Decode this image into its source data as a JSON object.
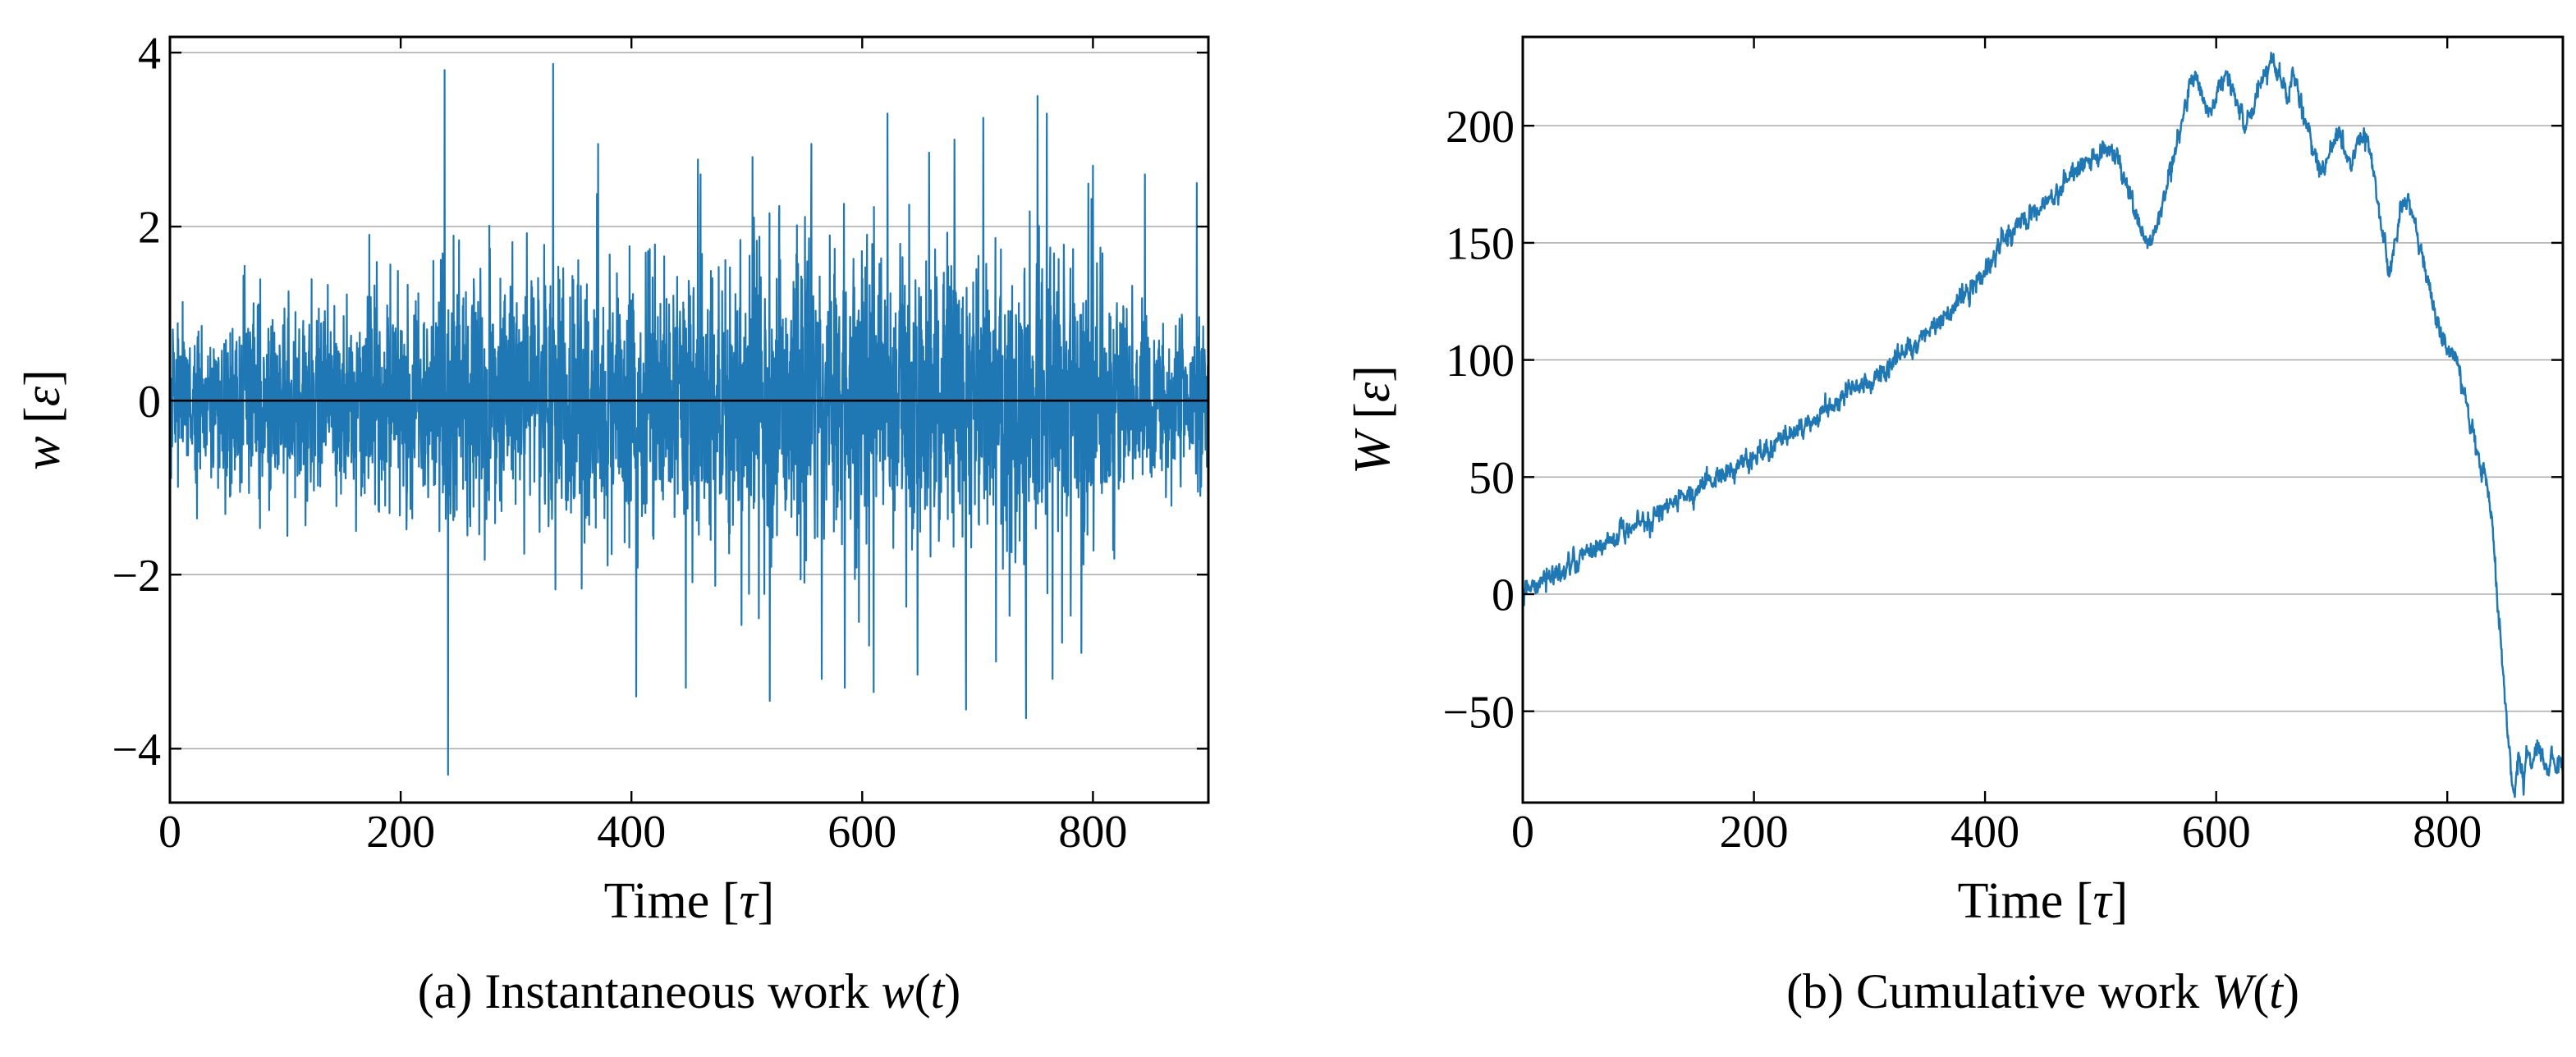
{
  "figure": {
    "style": {
      "background": "#ffffff",
      "line_color": "#1f77b4",
      "grid_color": "#b0b0b0",
      "axis_color": "#000000",
      "text_color": "#000000"
    }
  },
  "chart_data": [
    {
      "id": "panel-a",
      "type": "line",
      "title": "",
      "caption": "(a) Instantaneous work w(t)",
      "caption_segments": [
        [
          "(a) Instantaneous work ",
          false
        ],
        [
          "w",
          true
        ],
        [
          "(",
          false
        ],
        [
          "t",
          true
        ],
        [
          ")",
          false
        ]
      ],
      "xlabel": "Time [τ]",
      "xlabel_segments": [
        [
          "Time [",
          false
        ],
        [
          "τ",
          true
        ],
        [
          "]",
          false
        ]
      ],
      "ylabel": "w [ε]",
      "ylabel_segments": [
        [
          "w",
          true
        ],
        [
          " [",
          false
        ],
        [
          "ε",
          true
        ],
        [
          "]",
          false
        ]
      ],
      "xlim": [
        0,
        900
      ],
      "ylim": [
        -4.62,
        4.18
      ],
      "xticks": [
        0,
        200,
        400,
        600,
        800
      ],
      "yticks": [
        4,
        2,
        0,
        -2,
        -4
      ],
      "grid": "horizontal-only",
      "legend": "none",
      "zero_line": true,
      "line_width": 2.2,
      "series": {
        "name": "w(t)",
        "n_points": 3600,
        "seed": 42,
        "sigma_factor": 0.5,
        "envelope_t": [
          0,
          60,
          120,
          200,
          280,
          360,
          440,
          520,
          600,
          680,
          740,
          790,
          820,
          840,
          860,
          905
        ],
        "envelope_amp": [
          0.9,
          1.0,
          1.1,
          1.25,
          1.45,
          1.55,
          1.6,
          1.6,
          1.65,
          1.7,
          1.7,
          1.6,
          1.35,
          1.05,
          0.92,
          0.9
        ],
        "spikes": [
          [
            238,
            3.8
          ],
          [
            241,
            -4.3
          ],
          [
            332,
            3.87
          ],
          [
            371,
            2.95
          ],
          [
            404,
            -3.4
          ],
          [
            447,
            -3.3
          ],
          [
            460,
            2.6
          ],
          [
            505,
            2.8
          ],
          [
            520,
            -3.45
          ],
          [
            556,
            2.95
          ],
          [
            565,
            -3.2
          ],
          [
            585,
            -3.3
          ],
          [
            610,
            -3.35
          ],
          [
            622,
            3.3
          ],
          [
            648,
            -3.15
          ],
          [
            658,
            2.85
          ],
          [
            680,
            3.0
          ],
          [
            690,
            -3.55
          ],
          [
            705,
            3.25
          ],
          [
            716,
            -3.0
          ],
          [
            742,
            -3.65
          ],
          [
            752,
            3.5
          ],
          [
            760,
            3.3
          ],
          [
            765,
            -3.2
          ],
          [
            790,
            -2.9
          ],
          [
            800,
            2.7
          ],
          [
            845,
            2.6
          ],
          [
            890,
            2.5
          ]
        ]
      }
    },
    {
      "id": "panel-b",
      "type": "line",
      "title": "",
      "caption": "(b) Cumulative work W(t)",
      "caption_segments": [
        [
          "(b) Cumulative work ",
          false
        ],
        [
          "W",
          true
        ],
        [
          "(",
          false
        ],
        [
          "t",
          true
        ],
        [
          ")",
          false
        ]
      ],
      "xlabel": "Time [τ]",
      "xlabel_segments": [
        [
          "Time [",
          false
        ],
        [
          "τ",
          true
        ],
        [
          "]",
          false
        ]
      ],
      "ylabel": "W [ε]",
      "ylabel_segments": [
        [
          "W",
          true
        ],
        [
          " [",
          false
        ],
        [
          "ε",
          true
        ],
        [
          "]",
          false
        ]
      ],
      "xlim": [
        0,
        900
      ],
      "ylim": [
        -89.0,
        237.9
      ],
      "xticks": [
        0,
        200,
        400,
        600,
        800
      ],
      "yticks": [
        200,
        150,
        100,
        50,
        0,
        -50
      ],
      "grid": "horizontal-only",
      "legend": "none",
      "zero_line": false,
      "line_width": 2.5,
      "series": {
        "name": "W(t)",
        "n_points": 2600,
        "seed": 1234,
        "noise_sigma": 1.7,
        "noise_ar": 0.6,
        "noise_white": 0.9,
        "trend_t": [
          0,
          40,
          80,
          120,
          160,
          200,
          240,
          280,
          310,
          340,
          370,
          400,
          415,
          430,
          445,
          460,
          475,
          490,
          505,
          515,
          525,
          535,
          541,
          548,
          556,
          563,
          570,
          577,
          583,
          589,
          595,
          601,
          607,
          613,
          619,
          625,
          631,
          637,
          643,
          649,
          655,
          661,
          666,
          671,
          676,
          681,
          686,
          691,
          696,
          701,
          706,
          711,
          716,
          721,
          726,
          730,
          736,
          741,
          746,
          750,
          754,
          759,
          764,
          769,
          774,
          779,
          784,
          790,
          796,
          802,
          808,
          814,
          820,
          826,
          831,
          836,
          840,
          843,
          846,
          849,
          852,
          855,
          858,
          862,
          866,
          870,
          874,
          878,
          882,
          886,
          890,
          894,
          898,
          902,
          905
        ],
        "trend_w": [
          0,
          12,
          24,
          36,
          48,
          58,
          71,
          85,
          95,
          107,
          121,
          138,
          149,
          157,
          164,
          171,
          179,
          186,
          190,
          185,
          172,
          156,
          148,
          158,
          172,
          186,
          200,
          215,
          222,
          212,
          204,
          214,
          224,
          216,
          207,
          199,
          207,
          216,
          224,
          228,
          220,
          212,
          223,
          214,
          205,
          197,
          188,
          180,
          186,
          192,
          198,
          190,
          182,
          188,
          194,
          196,
          180,
          162,
          150,
          140,
          148,
          162,
          170,
          163,
          152,
          143,
          132,
          120,
          110,
          102,
          99,
          88,
          72,
          60,
          52,
          42,
          22,
          0,
          -20,
          -40,
          -55,
          -75,
          -85,
          -70,
          -78,
          -65,
          -72,
          -62,
          -70,
          -76,
          -68,
          -74,
          -70,
          -78,
          -80
        ]
      }
    }
  ]
}
